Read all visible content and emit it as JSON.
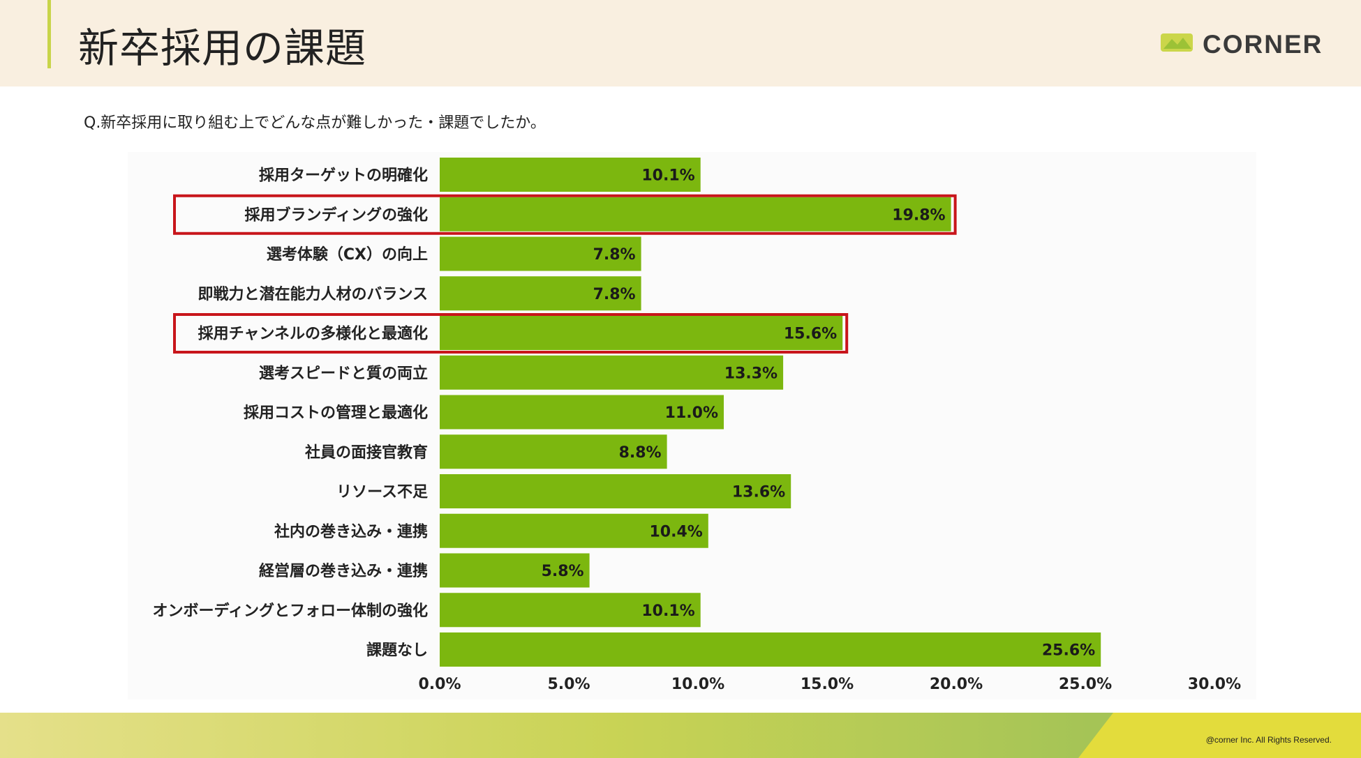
{
  "header": {
    "title": "新卒採用の課題",
    "logo_text": "CORNER"
  },
  "question": "Q.新卒採用に取り組む上でどんな点が難しかった・課題でしたか。",
  "footer": {
    "copyright": "@corner Inc. All Rights Reserved."
  },
  "colors": {
    "bar": "#7cb70f",
    "highlight_box": "#c8151b",
    "header_bg": "#f9efe0",
    "accent": "#c8d44a"
  },
  "chart_data": {
    "type": "bar",
    "orientation": "horizontal",
    "categories": [
      "採用ターゲットの明確化",
      "採用ブランディングの強化",
      "選考体験（CX）の向上",
      "即戦力と潜在能力人材のバランス",
      "採用チャンネルの多様化と最適化",
      "選考スピードと質の両立",
      "採用コストの管理と最適化",
      "社員の面接官教育",
      "リソース不足",
      "社内の巻き込み・連携",
      "経営層の巻き込み・連携",
      "オンボーディングとフォロー体制の強化",
      "課題なし"
    ],
    "values": [
      10.1,
      19.8,
      7.8,
      7.8,
      15.6,
      13.3,
      11.0,
      8.8,
      13.6,
      10.4,
      5.8,
      10.1,
      25.6
    ],
    "value_labels": [
      "10.1%",
      "19.8%",
      "7.8%",
      "7.8%",
      "15.6%",
      "13.3%",
      "11.0%",
      "8.8%",
      "13.6%",
      "10.4%",
      "5.8%",
      "10.1%",
      "25.6%"
    ],
    "highlighted": [
      "採用ブランディングの強化",
      "採用チャンネルの多様化と最適化"
    ],
    "x_ticks": [
      0,
      5,
      10,
      15,
      20,
      25,
      30
    ],
    "x_tick_labels": [
      "0.0%",
      "5.0%",
      "10.0%",
      "15.0%",
      "20.0%",
      "25.0%",
      "30.0%"
    ],
    "xlim": [
      0,
      30
    ],
    "grid": false,
    "legend": false
  }
}
